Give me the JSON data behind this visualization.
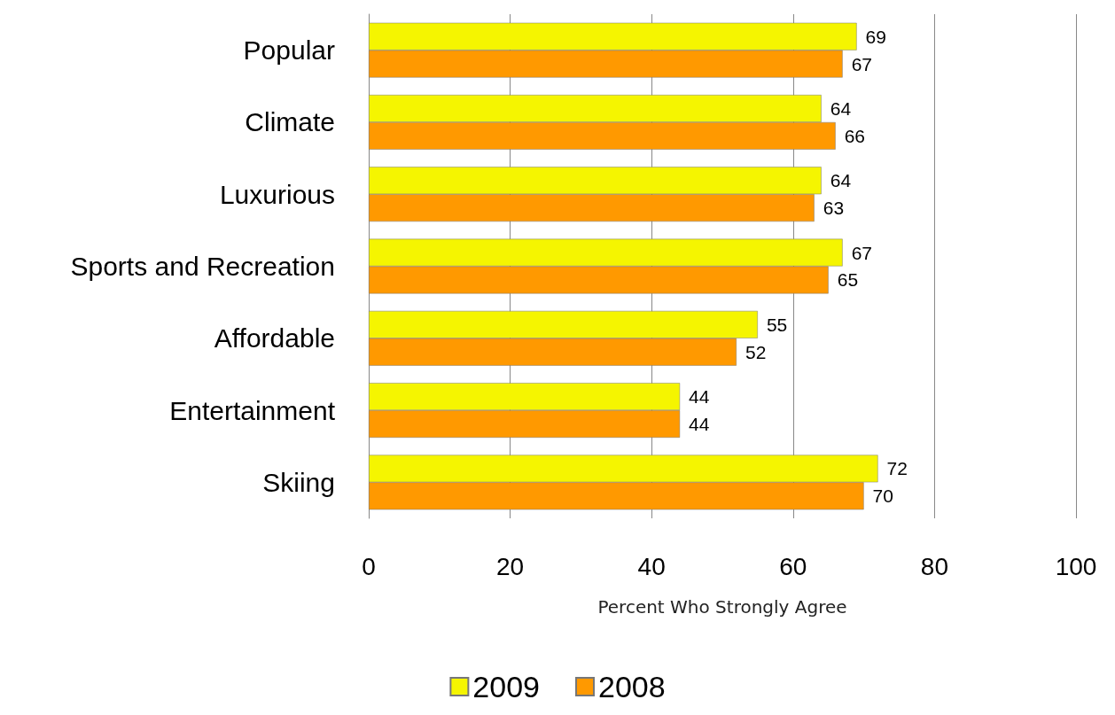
{
  "chart_data": {
    "type": "bar",
    "orientation": "horizontal",
    "xlabel": "Percent Who Strongly Agree",
    "categories": [
      "Popular",
      "Climate",
      "Luxurious",
      "Sports and Recreation",
      "Affordable",
      "Entertainment",
      "Skiing"
    ],
    "series": [
      {
        "name": "2009",
        "color": "#f5f500",
        "values": [
          69,
          64,
          64,
          67,
          55,
          44,
          72
        ]
      },
      {
        "name": "2008",
        "color": "#ff9900",
        "values": [
          67,
          66,
          63,
          65,
          52,
          44,
          70
        ]
      }
    ],
    "xlim": [
      0,
      100
    ],
    "xticks": [
      0,
      20,
      40,
      60,
      80,
      100
    ],
    "grid": "x",
    "legend": "bottom",
    "data_labels": true
  }
}
